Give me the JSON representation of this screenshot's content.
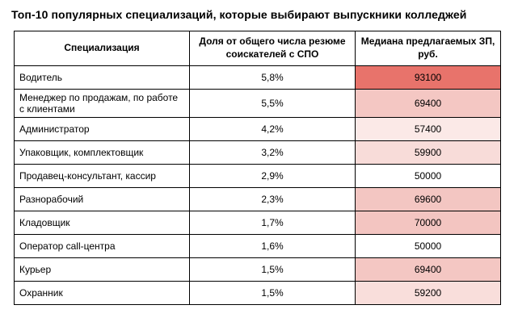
{
  "chart_data": {
    "type": "table",
    "title": "Топ-10 популярных специализаций, которые выбирают выпускники колледжей",
    "columns": [
      "Специализация",
      "Доля от общего числа резюме соискателей с СПО",
      "Медиана предлагаемых ЗП, руб."
    ],
    "rows": [
      {
        "specialization": "Водитель",
        "share_pct": "5,8%",
        "median_salary": "93100",
        "salary_bg": "#E8736B"
      },
      {
        "specialization": "Менеджер по продажам, по работе с клиентами",
        "share_pct": "5,5%",
        "median_salary": "69400",
        "salary_bg": "#F4C7C3"
      },
      {
        "specialization": "Администратор",
        "share_pct": "4,2%",
        "median_salary": "57400",
        "salary_bg": "#FBE9E7"
      },
      {
        "specialization": "Упаковщик, комплектовщик",
        "share_pct": "3,2%",
        "median_salary": "59900",
        "salary_bg": "#F8DCD9"
      },
      {
        "specialization": "Продавец-консультант, кассир",
        "share_pct": "2,9%",
        "median_salary": "50000",
        "salary_bg": "#FFFFFF"
      },
      {
        "specialization": "Разнорабочий",
        "share_pct": "2,3%",
        "median_salary": "69600",
        "salary_bg": "#F3C6C2"
      },
      {
        "specialization": "Кладовщик",
        "share_pct": "1,7%",
        "median_salary": "70000",
        "salary_bg": "#F3C5C1"
      },
      {
        "specialization": "Оператор call-центра",
        "share_pct": "1,6%",
        "median_salary": "50000",
        "salary_bg": "#FFFFFF"
      },
      {
        "specialization": "Курьер",
        "share_pct": "1,5%",
        "median_salary": "69400",
        "salary_bg": "#F4C7C3"
      },
      {
        "specialization": "Охранник",
        "share_pct": "1,5%",
        "median_salary": "59200",
        "salary_bg": "#F9DEDB"
      }
    ],
    "share_values_pct": [
      5.8,
      5.5,
      4.2,
      3.2,
      2.9,
      2.3,
      1.7,
      1.6,
      1.5,
      1.5
    ],
    "median_salary_rub": [
      93100,
      69400,
      57400,
      59900,
      50000,
      69600,
      70000,
      50000,
      69400,
      59200
    ],
    "heatmap": {
      "applies_to_column": "Медиана предлагаемых ЗП, руб.",
      "min_color": "#FFFFFF",
      "max_color": "#E8736B",
      "border_color": "#000000"
    }
  }
}
